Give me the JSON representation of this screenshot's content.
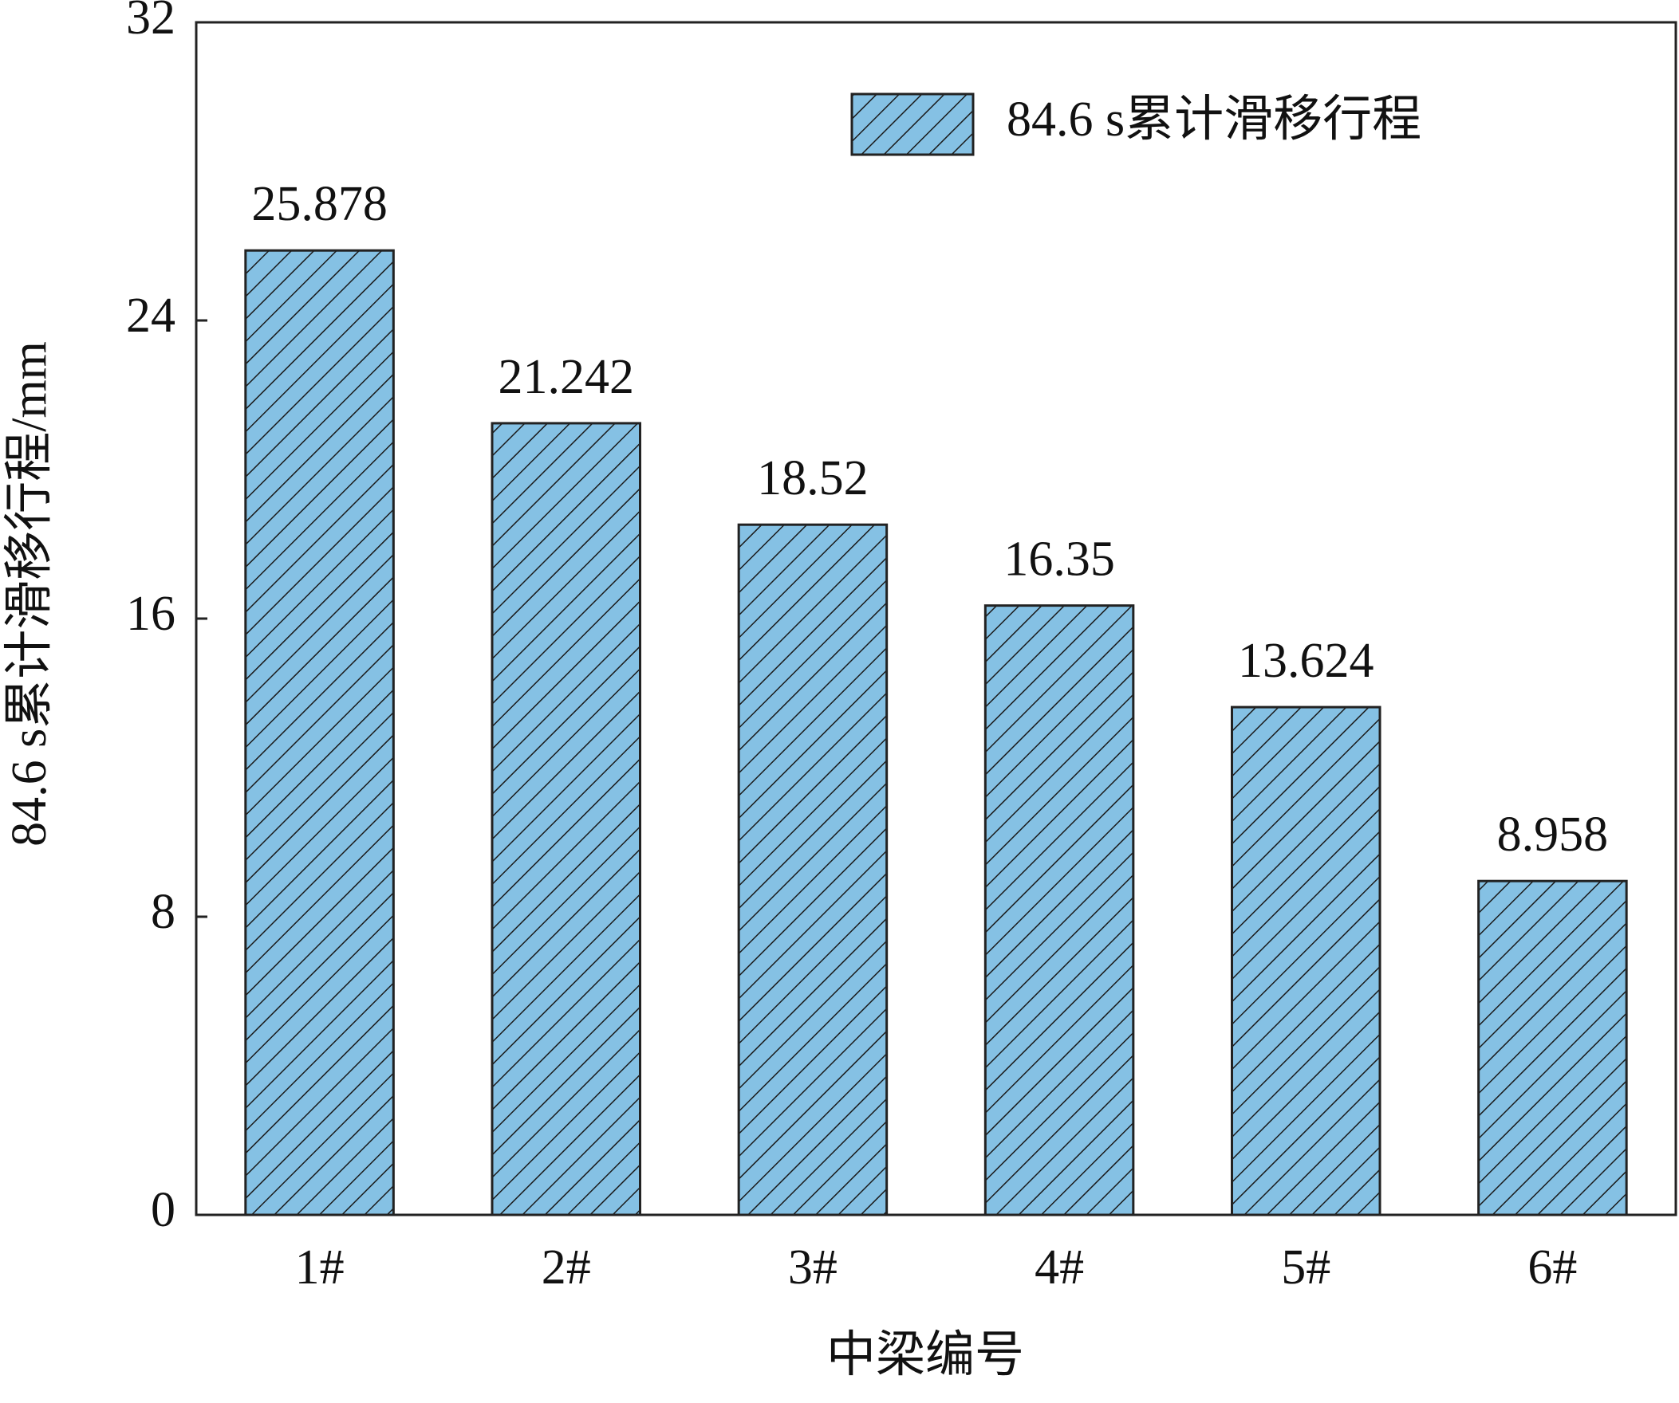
{
  "chart_data": {
    "type": "bar",
    "categories": [
      "1#",
      "2#",
      "3#",
      "4#",
      "5#",
      "6#"
    ],
    "series": [
      {
        "name": "84.6 s累计滑移行程",
        "values": [
          25.878,
          21.242,
          18.52,
          16.35,
          13.624,
          8.958
        ],
        "value_labels": [
          "25.878",
          "21.242",
          "18.52",
          "16.35",
          "13.624",
          "8.958"
        ],
        "color": "#85C1E4",
        "hatch_color": "#1a1a1a"
      }
    ],
    "title": "",
    "xlabel": "中梁编号",
    "ylabel": "84.6 s累计滑移行程/mm",
    "ylim": [
      0,
      32
    ],
    "yticks": [
      0,
      8,
      16,
      24,
      32
    ],
    "ytick_labels": [
      "0",
      "8",
      "16",
      "24",
      "32"
    ],
    "grid": false,
    "legend": {
      "position": "top-right",
      "label": "84.6 s累计滑移行程"
    }
  }
}
